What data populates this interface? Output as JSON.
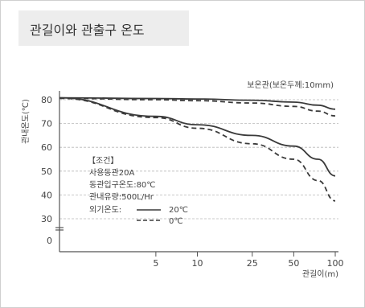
{
  "title": "관길이와 관출구 온도",
  "chart_data": {
    "type": "line",
    "xlabel": "관길이(m)",
    "ylabel": "관내온도(℃)",
    "x_scale": "log",
    "xlim": [
      1,
      100
    ],
    "ylim": [
      0,
      80
    ],
    "x_ticks": [
      5,
      10,
      25,
      50,
      100
    ],
    "y_ticks": [
      0,
      30,
      40,
      50,
      60,
      70,
      80
    ],
    "x_tick_labels": [
      "5",
      "10",
      "25",
      "50",
      "100"
    ],
    "y_tick_labels": [
      "0",
      "30",
      "40",
      "50",
      "60",
      "70",
      "80"
    ],
    "grid": "horizontal dashed",
    "annotation": "보온관(보온두께:10mm)",
    "conditions": {
      "heading": "【조건】",
      "lines": [
        "사용동관20A",
        "동관입구온도:80℃",
        "관내유량:500L/Hr"
      ],
      "legend_prefix": "외기온도:",
      "legend_items": [
        {
          "label": "20℃",
          "style": "solid"
        },
        {
          "label": "0℃",
          "style": "dashed"
        }
      ]
    },
    "series": [
      {
        "group": "insulated",
        "style": "solid",
        "x": [
          1,
          5,
          10,
          25,
          50,
          75,
          100
        ],
        "y": [
          80.8,
          80.5,
          80.3,
          79.8,
          79.0,
          77.7,
          76.0
        ]
      },
      {
        "group": "insulated",
        "style": "dashed",
        "x": [
          1,
          5,
          10,
          25,
          50,
          75,
          100
        ],
        "y": [
          80.6,
          80.0,
          79.6,
          78.6,
          77.2,
          75.2,
          73.2
        ]
      },
      {
        "group": "bare",
        "style": "solid",
        "x": [
          1,
          5,
          10,
          25,
          50,
          75,
          100
        ],
        "y": [
          80.8,
          73.0,
          69.5,
          65.0,
          60.5,
          55.0,
          48.0
        ]
      },
      {
        "group": "bare",
        "style": "dashed",
        "x": [
          1,
          5,
          10,
          25,
          50,
          75,
          100
        ],
        "y": [
          80.6,
          72.5,
          68.0,
          61.5,
          55.0,
          46.0,
          37.5
        ]
      }
    ],
    "colors": {
      "line": "#3a3a3a",
      "grid": "#b8b8b8",
      "axis": "#555555",
      "text": "#444444"
    }
  }
}
